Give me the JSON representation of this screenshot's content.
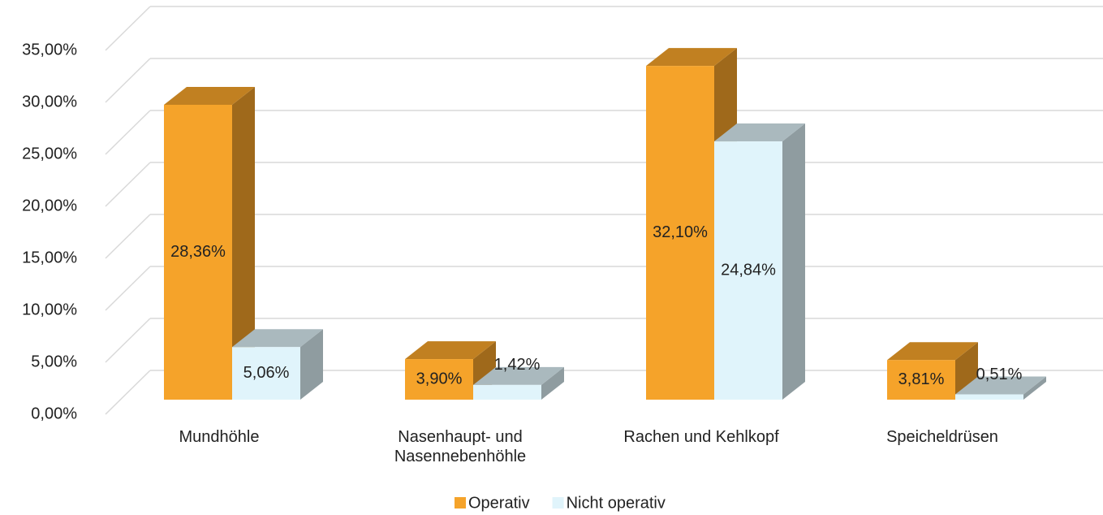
{
  "chart_data": {
    "type": "bar3d",
    "categories": [
      "Mundhöhle",
      "Nasenhaupt- und\nNasennebenhöhle",
      "Rachen und Kehlkopf",
      "Speicheldrüsen"
    ],
    "series": [
      {
        "name": "Operativ",
        "color": "#F5A32A",
        "values": [
          28.36,
          3.9,
          32.1,
          3.81
        ],
        "value_labels": [
          "28,36%",
          "3,90%",
          "32,10%",
          "3,81%"
        ]
      },
      {
        "name": "Nicht operativ",
        "color": "#E0F4FB",
        "values": [
          5.06,
          1.42,
          24.84,
          0.51
        ],
        "value_labels": [
          "5,06%",
          "1,42%",
          "24,84%",
          "0,51%"
        ]
      }
    ],
    "ylim": [
      0,
      35
    ],
    "yticks": [
      {
        "value": 0,
        "label": "0,00%"
      },
      {
        "value": 5,
        "label": "5,00%"
      },
      {
        "value": 10,
        "label": "10,00%"
      },
      {
        "value": 15,
        "label": "15,00%"
      },
      {
        "value": 20,
        "label": "20,00%"
      },
      {
        "value": 25,
        "label": "25,00%"
      },
      {
        "value": 30,
        "label": "30,00%"
      },
      {
        "value": 35,
        "label": "35,00%"
      }
    ],
    "grid": true,
    "legend": "bottom"
  }
}
